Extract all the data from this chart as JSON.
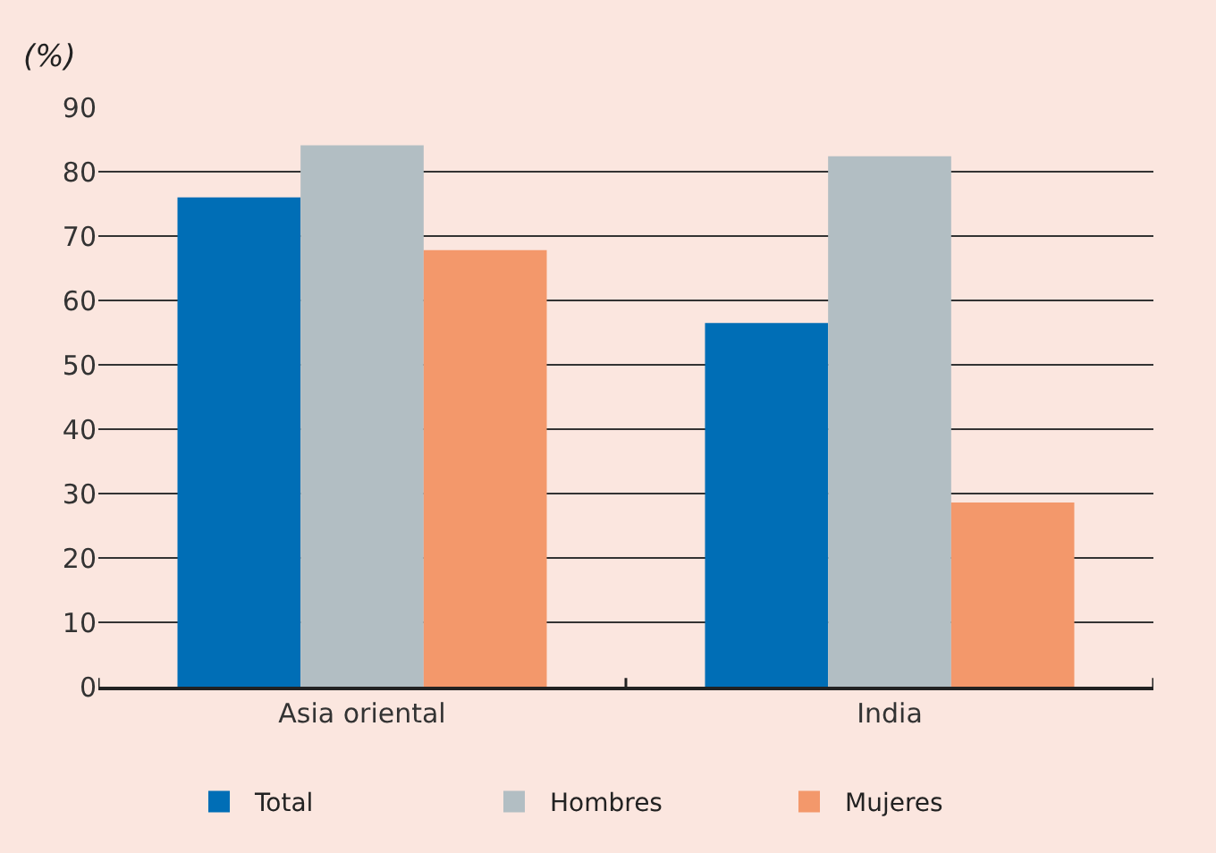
{
  "chart_data": {
    "type": "bar",
    "ylabel": "(%)",
    "categories": [
      "Asia oriental",
      "India"
    ],
    "series": [
      {
        "name": "Total",
        "color": "#006eb6",
        "values": [
          76.0,
          56.5
        ]
      },
      {
        "name": "Hombres",
        "color": "#b2bec3",
        "values": [
          84.1,
          82.4
        ]
      },
      {
        "name": "Mujeres",
        "color": "#f3986b",
        "values": [
          67.8,
          28.6
        ]
      }
    ],
    "ylim": [
      0,
      90
    ],
    "yticks": [
      0,
      10,
      20,
      30,
      40,
      50,
      60,
      70,
      80,
      90
    ],
    "grid": "y",
    "legend": "bottom"
  }
}
